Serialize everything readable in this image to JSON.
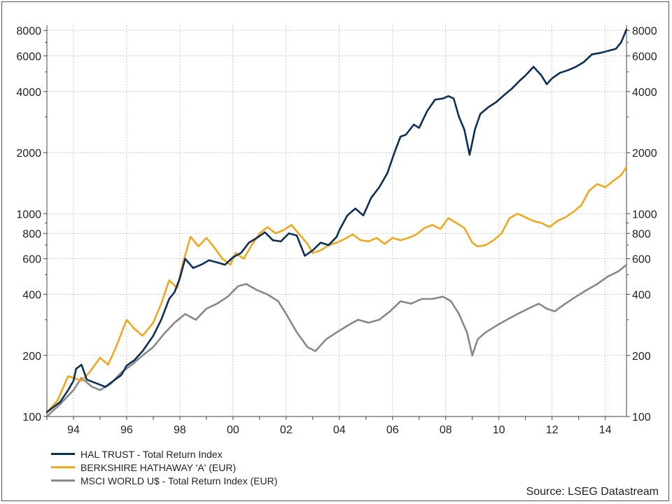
{
  "chart_data": {
    "type": "line",
    "title": "",
    "xlabel": "",
    "ylabel": "",
    "x_scale": "time",
    "y_scale": "log",
    "xlim": [
      1993.0,
      2014.8
    ],
    "ylim": [
      100,
      8500
    ],
    "x_ticks": [
      1994,
      1996,
      1998,
      2000,
      2002,
      2004,
      2006,
      2008,
      2010,
      2012,
      2014
    ],
    "x_tick_labels": [
      "94",
      "96",
      "98",
      "00",
      "02",
      "04",
      "06",
      "08",
      "10",
      "12",
      "14"
    ],
    "y_ticks": [
      100,
      200,
      400,
      600,
      800,
      1000,
      2000,
      4000,
      6000,
      8000
    ],
    "y_tick_labels": [
      "100",
      "200",
      "400",
      "600",
      "800",
      "1000",
      "2000",
      "4000",
      "6000",
      "8000"
    ],
    "grid": true,
    "y_axis_both_sides": true,
    "legend_position": "bottom-left",
    "source": "Source: LSEG Datastream",
    "series": [
      {
        "name": "HAL TRUST - Total Return Index",
        "color": "#0d2f55",
        "x": [
          1993.0,
          1993.5,
          1993.8,
          1994.0,
          1994.1,
          1994.3,
          1994.5,
          1994.9,
          1995.2,
          1995.5,
          1995.8,
          1996.0,
          1996.3,
          1996.6,
          1997.0,
          1997.3,
          1997.6,
          1997.8,
          1998.0,
          1998.2,
          1998.5,
          1998.8,
          1999.1,
          1999.4,
          1999.7,
          2000.0,
          2000.3,
          2000.6,
          2000.9,
          2001.2,
          2001.5,
          2001.8,
          2002.1,
          2002.4,
          2002.7,
          2003.0,
          2003.3,
          2003.6,
          2003.9,
          2004.0,
          2004.3,
          2004.6,
          2004.9,
          2005.2,
          2005.5,
          2005.8,
          2006.1,
          2006.3,
          2006.5,
          2006.8,
          2007.0,
          2007.3,
          2007.6,
          2007.9,
          2008.1,
          2008.3,
          2008.5,
          2008.7,
          2008.9,
          2009.1,
          2009.3,
          2009.6,
          2009.9,
          2010.2,
          2010.5,
          2010.8,
          2011.0,
          2011.3,
          2011.6,
          2011.8,
          2012.0,
          2012.3,
          2012.6,
          2012.9,
          2013.2,
          2013.5,
          2013.8,
          2014.1,
          2014.4,
          2014.6,
          2014.8
        ],
        "y": [
          105,
          118,
          135,
          150,
          172,
          180,
          152,
          145,
          140,
          150,
          160,
          178,
          190,
          210,
          250,
          300,
          380,
          410,
          480,
          600,
          540,
          560,
          590,
          575,
          560,
          610,
          640,
          720,
          760,
          810,
          740,
          730,
          800,
          780,
          620,
          660,
          720,
          700,
          770,
          830,
          980,
          1060,
          980,
          1200,
          1350,
          1580,
          2050,
          2400,
          2450,
          2750,
          2650,
          3200,
          3650,
          3700,
          3800,
          3700,
          3000,
          2600,
          1950,
          2600,
          3100,
          3350,
          3550,
          3850,
          4150,
          4550,
          4800,
          5300,
          4800,
          4350,
          4650,
          4950,
          5100,
          5300,
          5600,
          6100,
          6200,
          6350,
          6500,
          7000,
          8100
        ]
      },
      {
        "name": "BERKSHIRE HATHAWAY 'A' (EUR)",
        "color": "#f0a81e",
        "x": [
          1993.0,
          1993.4,
          1993.8,
          1994.0,
          1994.3,
          1994.6,
          1995.0,
          1995.3,
          1995.6,
          1996.0,
          1996.3,
          1996.6,
          1997.0,
          1997.3,
          1997.6,
          1997.9,
          1998.1,
          1998.4,
          1998.7,
          1999.0,
          1999.3,
          1999.6,
          1999.9,
          2000.1,
          2000.4,
          2000.7,
          2001.0,
          2001.3,
          2001.6,
          2001.9,
          2002.2,
          2002.5,
          2002.8,
          2003.0,
          2003.3,
          2003.6,
          2003.9,
          2004.2,
          2004.5,
          2004.8,
          2005.1,
          2005.4,
          2005.7,
          2006.0,
          2006.3,
          2006.6,
          2006.9,
          2007.2,
          2007.5,
          2007.8,
          2008.1,
          2008.4,
          2008.7,
          2009.0,
          2009.2,
          2009.5,
          2009.8,
          2010.1,
          2010.4,
          2010.7,
          2011.0,
          2011.3,
          2011.6,
          2011.9,
          2012.2,
          2012.5,
          2012.8,
          2013.1,
          2013.4,
          2013.7,
          2014.0,
          2014.3,
          2014.6,
          2014.8
        ],
        "y": [
          105,
          120,
          158,
          155,
          150,
          165,
          195,
          180,
          220,
          300,
          270,
          250,
          290,
          360,
          470,
          430,
          560,
          770,
          690,
          760,
          680,
          600,
          560,
          640,
          600,
          700,
          800,
          860,
          800,
          830,
          880,
          790,
          710,
          640,
          660,
          700,
          720,
          750,
          790,
          740,
          730,
          760,
          710,
          760,
          740,
          760,
          790,
          850,
          880,
          840,
          950,
          900,
          850,
          720,
          690,
          700,
          740,
          800,
          950,
          1000,
          960,
          920,
          900,
          860,
          920,
          960,
          1020,
          1100,
          1300,
          1400,
          1350,
          1450,
          1550,
          1700
        ]
      },
      {
        "name": "MSCI WORLD U$ - Total Return Index (EUR)",
        "color": "#888888",
        "x": [
          1993.0,
          1993.5,
          1994.0,
          1994.3,
          1994.7,
          1995.0,
          1995.4,
          1995.8,
          1996.2,
          1996.6,
          1997.0,
          1997.4,
          1997.8,
          1998.2,
          1998.6,
          1999.0,
          1999.4,
          1999.8,
          2000.2,
          2000.5,
          2000.9,
          2001.3,
          2001.7,
          2002.0,
          2002.4,
          2002.8,
          2003.1,
          2003.5,
          2003.9,
          2004.3,
          2004.7,
          2005.1,
          2005.5,
          2005.9,
          2006.3,
          2006.7,
          2007.1,
          2007.5,
          2007.9,
          2008.2,
          2008.5,
          2008.8,
          2009.0,
          2009.2,
          2009.5,
          2009.9,
          2010.3,
          2010.7,
          2011.1,
          2011.5,
          2011.8,
          2012.1,
          2012.5,
          2012.9,
          2013.3,
          2013.7,
          2014.1,
          2014.5,
          2014.8
        ],
        "y": [
          100,
          115,
          135,
          155,
          140,
          135,
          145,
          165,
          180,
          200,
          220,
          255,
          290,
          320,
          300,
          340,
          360,
          390,
          440,
          450,
          420,
          400,
          370,
          320,
          260,
          220,
          210,
          240,
          260,
          280,
          300,
          290,
          300,
          330,
          370,
          360,
          380,
          380,
          390,
          370,
          320,
          260,
          200,
          240,
          260,
          280,
          300,
          320,
          340,
          360,
          340,
          330,
          360,
          390,
          420,
          450,
          490,
          520,
          560
        ]
      }
    ]
  }
}
